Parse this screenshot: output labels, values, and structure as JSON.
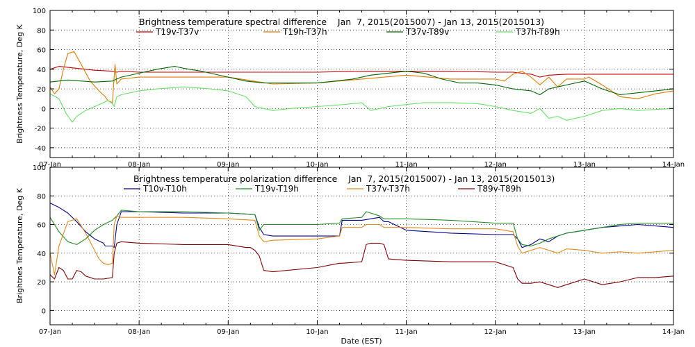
{
  "chart_data": [
    {
      "type": "line",
      "title": "Brightness temperature spectral difference    Jan  7, 2015(2015007) - Jan 13, 2015(2015013)",
      "xlabel": "",
      "ylabel": "Brightness Temperature, Deg K",
      "xlim": [
        0,
        7
      ],
      "ylim": [
        -50,
        100
      ],
      "yticks": [
        -40,
        -20,
        0,
        20,
        40,
        60,
        80,
        100
      ],
      "xtick_labels": [
        "07-Jan",
        "08-Jan",
        "09-Jan",
        "10-Jan",
        "11-Jan",
        "12-Jan",
        "13-Jan",
        "14-Jan"
      ],
      "grid": true,
      "series": [
        {
          "name": "T19v-T37v",
          "color": "#c00000",
          "x": [
            0,
            0.1,
            0.3,
            0.5,
            0.7,
            0.75,
            0.8,
            1,
            1.5,
            2,
            2.5,
            3,
            3.5,
            4,
            4.5,
            5,
            5.2,
            5.4,
            5.5,
            5.6,
            5.8,
            6,
            6.3,
            6.6,
            7
          ],
          "y": [
            40,
            43,
            41,
            39,
            38,
            37,
            38,
            37,
            37,
            37,
            37,
            37,
            38,
            38,
            38,
            37,
            37,
            35,
            32,
            34,
            35,
            35,
            35,
            35,
            35
          ]
        },
        {
          "name": "T19h-T37h",
          "color": "#e07b00",
          "x": [
            0,
            0.05,
            0.1,
            0.15,
            0.2,
            0.27,
            0.35,
            0.45,
            0.55,
            0.62,
            0.65,
            0.7,
            0.73,
            0.75,
            0.8,
            0.9,
            1,
            1.5,
            2,
            2.5,
            3,
            3.5,
            4,
            4.5,
            5,
            5.1,
            5.2,
            5.3,
            5.4,
            5.5,
            5.6,
            5.7,
            5.8,
            6,
            6.05,
            6.2,
            6.4,
            6.6,
            6.8,
            7
          ],
          "y": [
            22,
            15,
            20,
            40,
            56,
            58,
            45,
            28,
            18,
            12,
            8,
            6,
            45,
            25,
            30,
            31,
            32,
            32,
            32,
            25,
            26,
            30,
            34,
            30,
            30,
            28,
            35,
            38,
            32,
            24,
            32,
            22,
            30,
            30,
            32,
            24,
            12,
            10,
            15,
            18
          ]
        },
        {
          "name": "T37v-T89v",
          "color": "#006400",
          "x": [
            0,
            0.2,
            0.5,
            0.7,
            0.75,
            0.8,
            1.0,
            1.2,
            1.4,
            1.5,
            1.7,
            2,
            2.2,
            2.4,
            2.6,
            3,
            3.2,
            3.4,
            3.6,
            4,
            4.2,
            4.4,
            4.6,
            4.8,
            5,
            5.2,
            5.4,
            5.5,
            5.6,
            5.7,
            5.8,
            6,
            6.2,
            6.4,
            6.6,
            6.8,
            7
          ],
          "y": [
            27,
            29,
            27,
            28,
            30,
            32,
            36,
            40,
            43,
            41,
            38,
            32,
            28,
            26,
            26,
            26,
            28,
            30,
            34,
            38,
            36,
            30,
            26,
            26,
            24,
            20,
            18,
            14,
            20,
            22,
            24,
            28,
            20,
            14,
            16,
            18,
            20
          ]
        },
        {
          "name": "T37h-T89h",
          "color": "#66e066",
          "x": [
            0,
            0.1,
            0.18,
            0.25,
            0.3,
            0.4,
            0.5,
            0.6,
            0.65,
            0.7,
            0.72,
            0.75,
            0.8,
            0.9,
            1,
            1.2,
            1.5,
            1.8,
            2,
            2.2,
            2.3,
            2.5,
            2.7,
            3,
            3.3,
            3.5,
            3.6,
            3.8,
            4,
            4.2,
            4.5,
            4.8,
            5,
            5.2,
            5.4,
            5.5,
            5.6,
            5.7,
            5.8,
            6,
            6.2,
            6.4,
            6.6,
            6.8,
            7
          ],
          "y": [
            15,
            10,
            -5,
            -14,
            -8,
            -2,
            2,
            6,
            8,
            5,
            2,
            12,
            14,
            16,
            18,
            20,
            22,
            20,
            18,
            12,
            2,
            -2,
            0,
            2,
            4,
            6,
            -2,
            2,
            4,
            6,
            6,
            5,
            2,
            -2,
            -5,
            0,
            -10,
            -8,
            -12,
            -8,
            -2,
            0,
            -2,
            -1,
            0
          ]
        }
      ]
    },
    {
      "type": "line",
      "title": "Brightness temperature polarization difference    Jan  7, 2015(2015007) - Jan 13, 2015(2015013)",
      "xlabel": "Date (EST)",
      "ylabel": "Brightnes Temperature, Deg K",
      "xlim": [
        0,
        7
      ],
      "ylim": [
        -10,
        100
      ],
      "yticks": [
        0,
        20,
        40,
        60,
        80,
        100
      ],
      "xtick_labels": [
        "07-Jan",
        "08-Jan",
        "09-Jan",
        "10-Jan",
        "11-Jan",
        "12-Jan",
        "13-Jan",
        "14-Jan"
      ],
      "grid": true,
      "series": [
        {
          "name": "T10v-T10h",
          "color": "#00008b",
          "x": [
            0,
            0.1,
            0.2,
            0.3,
            0.4,
            0.5,
            0.6,
            0.62,
            0.7,
            0.72,
            0.75,
            0.8,
            1.0,
            1.5,
            2.0,
            2.3,
            2.35,
            2.4,
            2.5,
            3.0,
            3.25,
            3.28,
            3.5,
            3.7,
            3.75,
            3.8,
            4.0,
            4.5,
            5.0,
            5.2,
            5.25,
            5.3,
            5.4,
            5.5,
            5.6,
            5.7,
            5.8,
            6.0,
            6.2,
            6.4,
            6.6,
            6.8,
            7.0
          ],
          "y": [
            75,
            72,
            68,
            62,
            55,
            50,
            47,
            45,
            45,
            44,
            60,
            69,
            69,
            68,
            68,
            67,
            58,
            53,
            52,
            52,
            52,
            63,
            63,
            65,
            62,
            62,
            56,
            54,
            53,
            53,
            50,
            44,
            46,
            50,
            48,
            52,
            54,
            56,
            58,
            59,
            60,
            59,
            58
          ]
        },
        {
          "name": "T19v-T19h",
          "color": "#228b22",
          "x": [
            0,
            0.1,
            0.2,
            0.3,
            0.4,
            0.5,
            0.6,
            0.7,
            0.75,
            0.8,
            1.0,
            1.5,
            2.0,
            2.3,
            2.35,
            2.4,
            2.5,
            3.0,
            3.25,
            3.28,
            3.5,
            3.55,
            3.6,
            3.7,
            3.75,
            3.8,
            4.0,
            4.5,
            5.0,
            5.2,
            5.25,
            5.3,
            5.4,
            5.5,
            5.6,
            5.7,
            5.8,
            6.0,
            6.2,
            6.4,
            6.6,
            6.8,
            7.0
          ],
          "y": [
            65,
            55,
            48,
            46,
            50,
            56,
            60,
            63,
            66,
            70,
            69,
            69,
            68,
            67,
            56,
            60,
            60,
            60,
            61,
            64,
            65,
            69,
            68,
            66,
            64,
            64,
            64,
            63,
            61,
            61,
            50,
            46,
            45,
            47,
            50,
            52,
            54,
            56,
            58,
            60,
            61,
            61,
            61
          ]
        },
        {
          "name": "T37v-T37h",
          "color": "#e08a1e",
          "x": [
            0,
            0.05,
            0.1,
            0.2,
            0.3,
            0.4,
            0.5,
            0.55,
            0.6,
            0.65,
            0.7,
            0.72,
            0.75,
            0.8,
            1.0,
            1.5,
            2.0,
            2.3,
            2.35,
            2.4,
            2.5,
            3.0,
            3.25,
            3.28,
            3.5,
            3.55,
            3.6,
            3.7,
            3.75,
            3.8,
            4.0,
            4.5,
            5.0,
            5.2,
            5.25,
            5.3,
            5.4,
            5.5,
            5.6,
            5.7,
            5.8,
            6.0,
            6.2,
            6.4,
            6.6,
            6.8,
            7.0
          ],
          "y": [
            40,
            25,
            45,
            62,
            64,
            54,
            42,
            36,
            33,
            32,
            33,
            60,
            66,
            65,
            65,
            65,
            64,
            63,
            52,
            48,
            49,
            50,
            52,
            58,
            58,
            60,
            60,
            60,
            58,
            58,
            58,
            57,
            57,
            55,
            45,
            40,
            42,
            44,
            42,
            40,
            43,
            42,
            40,
            41,
            40,
            41,
            42
          ]
        },
        {
          "name": "T89v-T89h",
          "color": "#800000",
          "x": [
            0,
            0.05,
            0.1,
            0.15,
            0.2,
            0.25,
            0.3,
            0.35,
            0.4,
            0.5,
            0.6,
            0.7,
            0.72,
            0.75,
            0.8,
            1.0,
            1.5,
            2.0,
            2.2,
            2.25,
            2.3,
            2.35,
            2.4,
            2.5,
            3.0,
            3.25,
            3.28,
            3.5,
            3.55,
            3.6,
            3.7,
            3.75,
            3.8,
            4.0,
            4.5,
            5.0,
            5.2,
            5.25,
            5.3,
            5.4,
            5.5,
            5.6,
            5.7,
            5.8,
            6.0,
            6.2,
            6.4,
            6.6,
            6.8,
            7.0
          ],
          "y": [
            25,
            22,
            30,
            28,
            22,
            22,
            28,
            27,
            24,
            22,
            22,
            23,
            40,
            47,
            48,
            47,
            46,
            46,
            44,
            44,
            42,
            38,
            28,
            27,
            30,
            33,
            33,
            34,
            46,
            47,
            47,
            46,
            36,
            35,
            34,
            34,
            30,
            22,
            19,
            19,
            20,
            18,
            16,
            18,
            22,
            18,
            20,
            23,
            23,
            24
          ]
        }
      ]
    }
  ]
}
